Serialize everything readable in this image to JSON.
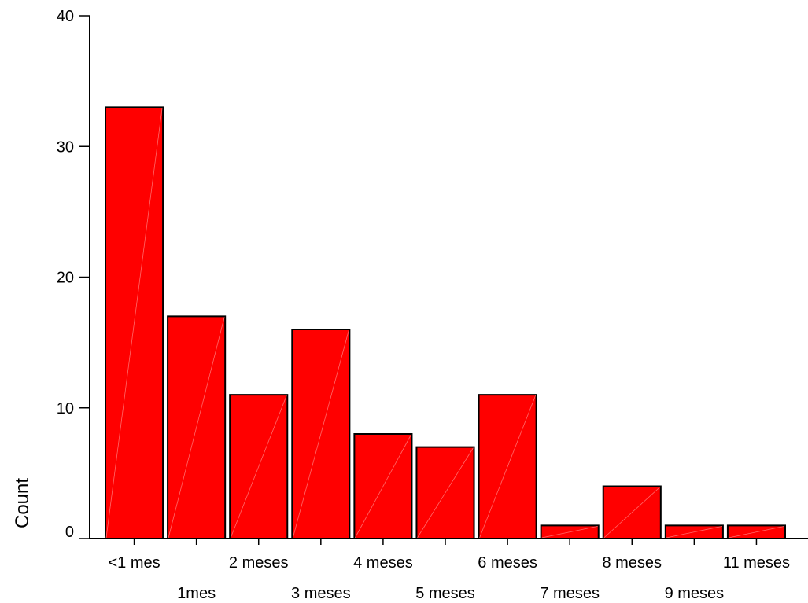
{
  "chart_data": {
    "type": "bar",
    "title": "",
    "xlabel": "",
    "ylabel": "Count",
    "categories": [
      "<1 mes",
      "1mes",
      "2 meses",
      "3 meses",
      "4 meses",
      "5 meses",
      "6 meses",
      "7 meses",
      "8 meses",
      "9 meses",
      "11 meses"
    ],
    "values": [
      33,
      17,
      11,
      16,
      8,
      7,
      11,
      1,
      4,
      1,
      1
    ],
    "ylim": [
      0,
      40
    ],
    "yticks": [
      0,
      10,
      20,
      30,
      40
    ],
    "grid": false,
    "legend": "none",
    "colors": {
      "bar_fill": "#ff0000",
      "bar_stroke": "#000000",
      "axis": "#000000"
    }
  }
}
